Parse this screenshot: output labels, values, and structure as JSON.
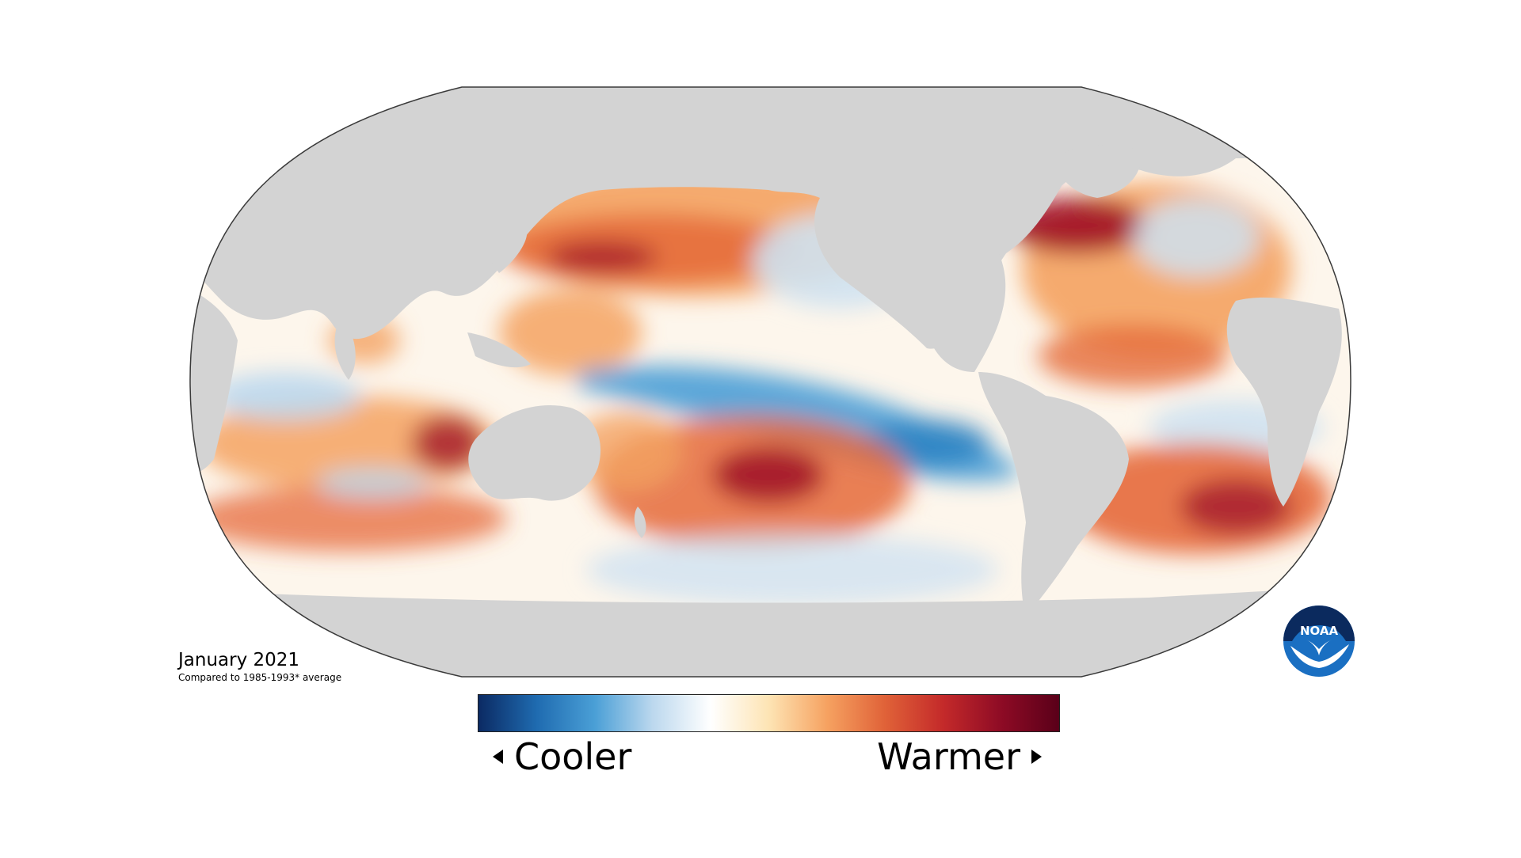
{
  "caption": {
    "title": "January 2021",
    "subtitle": "Compared to 1985-1993* average"
  },
  "legend": {
    "left_label": "Cooler",
    "right_label": "Warmer",
    "colors": [
      "#0b2a63",
      "#1f6bb0",
      "#4a9fd6",
      "#bcd8ee",
      "#ffffff",
      "#fde4b4",
      "#f6a261",
      "#e06238",
      "#c42a2a",
      "#8e0b25",
      "#5a0019"
    ]
  },
  "logo": {
    "text": "NOAA"
  },
  "map": {
    "land_color": "#d3d3d3",
    "ocean_neutral_color": "#fdf6ec",
    "outline_color": "#3a3a3a",
    "anomaly_colors": {
      "cool": "#5aa6d8",
      "cool_strong": "#2a7fc0",
      "warm": "#f4a261",
      "warm_mid": "#e56a3a",
      "warm_strong": "#a3162a"
    }
  }
}
